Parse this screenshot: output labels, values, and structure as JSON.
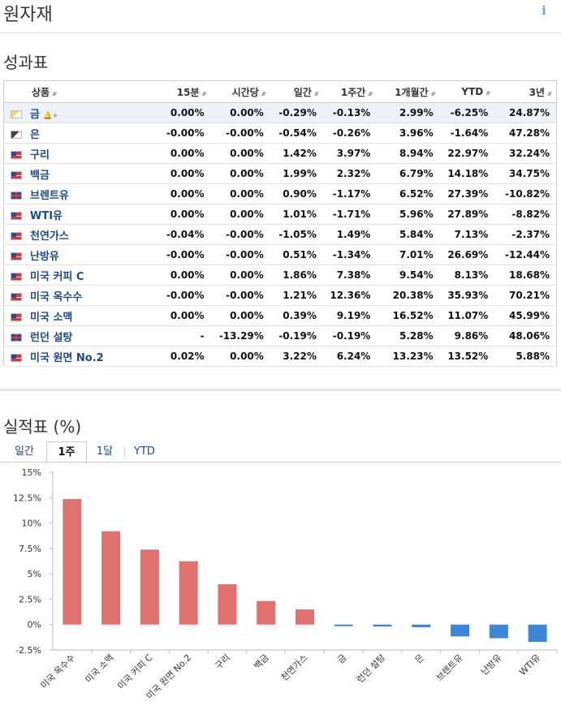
{
  "page": {
    "title": "원자재",
    "info_icon": "info-icon"
  },
  "performance": {
    "title": "성과표",
    "columns": [
      "상품",
      "15분",
      "시간당",
      "일간",
      "1주간",
      "1개월간",
      "YTD",
      "3년"
    ],
    "rows": [
      {
        "name": "금",
        "flag": "gold",
        "highlight": true,
        "bell": true,
        "values": [
          "0.00%",
          "0.00%",
          "-0.29%",
          "-0.13%",
          "2.99%",
          "-6.25%",
          "24.87%"
        ]
      },
      {
        "name": "은",
        "flag": "silver",
        "values": [
          "-0.00%",
          "-0.00%",
          "-0.54%",
          "-0.26%",
          "3.96%",
          "-1.64%",
          "47.28%"
        ]
      },
      {
        "name": "구리",
        "flag": "us",
        "values": [
          "0.00%",
          "0.00%",
          "1.42%",
          "3.97%",
          "8.94%",
          "22.97%",
          "32.24%"
        ]
      },
      {
        "name": "백금",
        "flag": "us",
        "values": [
          "0.00%",
          "0.00%",
          "1.99%",
          "2.32%",
          "6.79%",
          "14.18%",
          "34.75%"
        ]
      },
      {
        "name": "브렌트유",
        "flag": "gb",
        "values": [
          "0.00%",
          "0.00%",
          "0.90%",
          "-1.17%",
          "6.52%",
          "27.39%",
          "-10.82%"
        ]
      },
      {
        "name": "WTI유",
        "flag": "us",
        "values": [
          "0.00%",
          "0.00%",
          "1.01%",
          "-1.71%",
          "5.96%",
          "27.89%",
          "-8.82%"
        ]
      },
      {
        "name": "천연가스",
        "flag": "us",
        "values": [
          "-0.04%",
          "-0.00%",
          "-1.05%",
          "1.49%",
          "5.84%",
          "7.13%",
          "-2.37%"
        ]
      },
      {
        "name": "난방유",
        "flag": "us",
        "values": [
          "-0.00%",
          "-0.00%",
          "0.51%",
          "-1.34%",
          "7.01%",
          "26.69%",
          "-12.44%"
        ]
      },
      {
        "name": "미국 커피 C",
        "flag": "us",
        "values": [
          "0.00%",
          "0.00%",
          "1.86%",
          "7.38%",
          "9.54%",
          "8.13%",
          "18.68%"
        ]
      },
      {
        "name": "미국 옥수수",
        "flag": "us",
        "values": [
          "-0.00%",
          "-0.00%",
          "1.21%",
          "12.36%",
          "20.38%",
          "35.93%",
          "70.21%"
        ]
      },
      {
        "name": "미국 소맥",
        "flag": "us",
        "values": [
          "0.00%",
          "0.00%",
          "0.39%",
          "9.19%",
          "16.52%",
          "11.07%",
          "45.99%"
        ]
      },
      {
        "name": "런던 설탕",
        "flag": "gb",
        "values": [
          "-",
          "-13.29%",
          "-0.19%",
          "-0.19%",
          "5.28%",
          "9.86%",
          "48.06%"
        ]
      },
      {
        "name": "미국 원면 No.2",
        "flag": "us",
        "values": [
          "0.02%",
          "0.00%",
          "3.22%",
          "6.24%",
          "13.23%",
          "13.52%",
          "5.88%"
        ]
      }
    ]
  },
  "results": {
    "title": "실적표 (%)",
    "tabs": [
      "일간",
      "1주",
      "1달",
      "YTD"
    ],
    "active_tab": "1주"
  },
  "colors": {
    "positive": "#d31212",
    "negative": "#3a7bd5",
    "bar_positive": "#e0716f",
    "bar_negative": "#3d85d8"
  },
  "chart_data": {
    "type": "bar",
    "categories": [
      "미국 옥수수",
      "미국 소맥",
      "미국 커피 C",
      "미국 원면 No.2",
      "구리",
      "백금",
      "천연가스",
      "금",
      "런던 설탕",
      "은",
      "브렌트유",
      "난방유",
      "WTI유"
    ],
    "values": [
      12.36,
      9.19,
      7.38,
      6.24,
      3.97,
      2.32,
      1.49,
      -0.13,
      -0.19,
      -0.26,
      -1.17,
      -1.34,
      -1.71
    ],
    "yticks": [
      "15%",
      "12.5%",
      "10%",
      "7.5%",
      "5%",
      "2.5%",
      "0%",
      "-2.5%"
    ],
    "ylim": [
      -2.5,
      15
    ],
    "grid": false
  }
}
